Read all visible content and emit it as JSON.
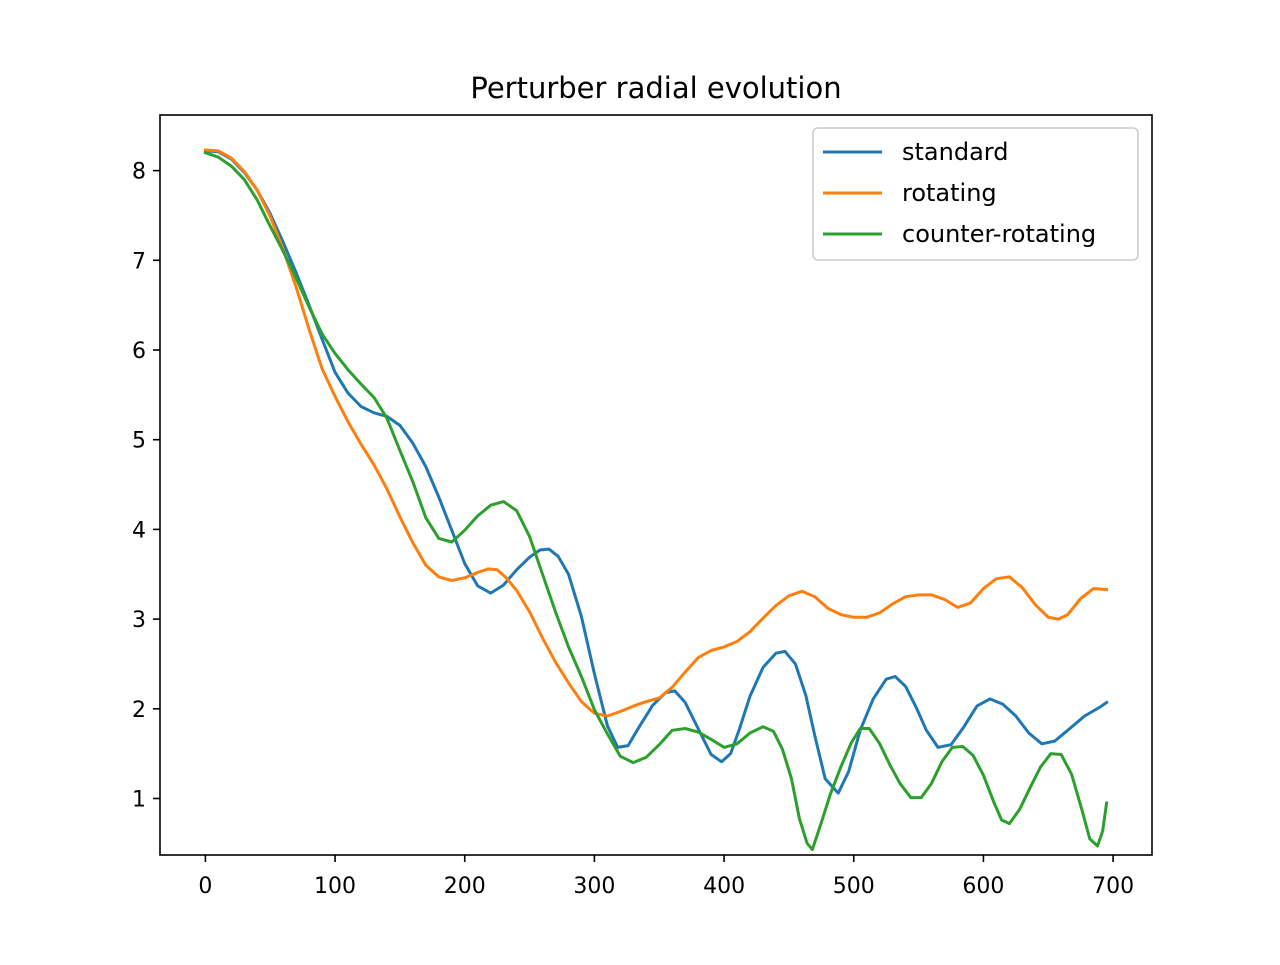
{
  "chart_data": {
    "type": "line",
    "title": "Perturber radial evolution",
    "xlabel": "",
    "ylabel": "",
    "xlim": [
      -35,
      730
    ],
    "ylim": [
      0.37,
      8.62
    ],
    "xticks": [
      0,
      100,
      200,
      300,
      400,
      500,
      600,
      700
    ],
    "yticks": [
      1,
      2,
      3,
      4,
      5,
      6,
      7,
      8
    ],
    "xtick_labels": [
      "0",
      "100",
      "200",
      "300",
      "400",
      "500",
      "600",
      "700"
    ],
    "ytick_labels": [
      "1",
      "2",
      "3",
      "4",
      "5",
      "6",
      "7",
      "8"
    ],
    "grid": false,
    "legend_position": "upper right",
    "series": [
      {
        "name": "standard",
        "color": "#1f77b4",
        "points": [
          [
            0,
            8.22
          ],
          [
            10,
            8.21
          ],
          [
            20,
            8.13
          ],
          [
            30,
            7.98
          ],
          [
            40,
            7.78
          ],
          [
            50,
            7.52
          ],
          [
            60,
            7.2
          ],
          [
            70,
            6.86
          ],
          [
            80,
            6.5
          ],
          [
            90,
            6.12
          ],
          [
            100,
            5.75
          ],
          [
            110,
            5.52
          ],
          [
            120,
            5.37
          ],
          [
            130,
            5.3
          ],
          [
            140,
            5.26
          ],
          [
            150,
            5.16
          ],
          [
            160,
            4.96
          ],
          [
            170,
            4.7
          ],
          [
            180,
            4.36
          ],
          [
            190,
            3.99
          ],
          [
            200,
            3.62
          ],
          [
            210,
            3.37
          ],
          [
            220,
            3.29
          ],
          [
            230,
            3.38
          ],
          [
            240,
            3.55
          ],
          [
            250,
            3.69
          ],
          [
            258,
            3.77
          ],
          [
            265,
            3.78
          ],
          [
            272,
            3.7
          ],
          [
            280,
            3.5
          ],
          [
            290,
            3.03
          ],
          [
            300,
            2.39
          ],
          [
            310,
            1.81
          ],
          [
            318,
            1.57
          ],
          [
            326,
            1.59
          ],
          [
            335,
            1.81
          ],
          [
            345,
            2.04
          ],
          [
            355,
            2.18
          ],
          [
            362,
            2.2
          ],
          [
            370,
            2.07
          ],
          [
            380,
            1.78
          ],
          [
            390,
            1.49
          ],
          [
            398,
            1.41
          ],
          [
            405,
            1.5
          ],
          [
            412,
            1.78
          ],
          [
            420,
            2.14
          ],
          [
            430,
            2.46
          ],
          [
            440,
            2.62
          ],
          [
            447,
            2.64
          ],
          [
            455,
            2.5
          ],
          [
            463,
            2.15
          ],
          [
            470,
            1.7
          ],
          [
            478,
            1.22
          ],
          [
            488,
            1.06
          ],
          [
            496,
            1.3
          ],
          [
            505,
            1.76
          ],
          [
            515,
            2.11
          ],
          [
            525,
            2.33
          ],
          [
            532,
            2.36
          ],
          [
            540,
            2.25
          ],
          [
            548,
            2.02
          ],
          [
            556,
            1.76
          ],
          [
            565,
            1.57
          ],
          [
            575,
            1.6
          ],
          [
            585,
            1.8
          ],
          [
            595,
            2.03
          ],
          [
            605,
            2.11
          ],
          [
            615,
            2.05
          ],
          [
            625,
            1.92
          ],
          [
            635,
            1.73
          ],
          [
            645,
            1.61
          ],
          [
            655,
            1.64
          ],
          [
            665,
            1.76
          ],
          [
            678,
            1.92
          ],
          [
            690,
            2.02
          ],
          [
            695,
            2.07
          ]
        ]
      },
      {
        "name": "rotating",
        "color": "#ff7f0e",
        "points": [
          [
            0,
            8.23
          ],
          [
            10,
            8.22
          ],
          [
            20,
            8.14
          ],
          [
            30,
            7.99
          ],
          [
            40,
            7.78
          ],
          [
            50,
            7.49
          ],
          [
            60,
            7.12
          ],
          [
            70,
            6.7
          ],
          [
            80,
            6.23
          ],
          [
            90,
            5.79
          ],
          [
            100,
            5.48
          ],
          [
            110,
            5.2
          ],
          [
            120,
            4.95
          ],
          [
            130,
            4.72
          ],
          [
            140,
            4.45
          ],
          [
            150,
            4.14
          ],
          [
            160,
            3.85
          ],
          [
            170,
            3.6
          ],
          [
            180,
            3.47
          ],
          [
            190,
            3.43
          ],
          [
            200,
            3.46
          ],
          [
            210,
            3.52
          ],
          [
            218,
            3.56
          ],
          [
            225,
            3.55
          ],
          [
            232,
            3.46
          ],
          [
            240,
            3.32
          ],
          [
            250,
            3.08
          ],
          [
            260,
            2.79
          ],
          [
            270,
            2.52
          ],
          [
            280,
            2.29
          ],
          [
            290,
            2.08
          ],
          [
            300,
            1.95
          ],
          [
            310,
            1.92
          ],
          [
            320,
            1.97
          ],
          [
            330,
            2.03
          ],
          [
            340,
            2.08
          ],
          [
            350,
            2.12
          ],
          [
            360,
            2.24
          ],
          [
            370,
            2.41
          ],
          [
            380,
            2.57
          ],
          [
            390,
            2.65
          ],
          [
            400,
            2.69
          ],
          [
            410,
            2.75
          ],
          [
            420,
            2.86
          ],
          [
            430,
            3.01
          ],
          [
            440,
            3.15
          ],
          [
            450,
            3.26
          ],
          [
            460,
            3.31
          ],
          [
            470,
            3.25
          ],
          [
            480,
            3.12
          ],
          [
            490,
            3.05
          ],
          [
            500,
            3.02
          ],
          [
            510,
            3.02
          ],
          [
            520,
            3.07
          ],
          [
            530,
            3.17
          ],
          [
            540,
            3.25
          ],
          [
            550,
            3.27
          ],
          [
            560,
            3.27
          ],
          [
            570,
            3.22
          ],
          [
            580,
            3.13
          ],
          [
            590,
            3.18
          ],
          [
            600,
            3.34
          ],
          [
            610,
            3.45
          ],
          [
            620,
            3.47
          ],
          [
            630,
            3.35
          ],
          [
            640,
            3.16
          ],
          [
            650,
            3.02
          ],
          [
            658,
            3.0
          ],
          [
            665,
            3.05
          ],
          [
            675,
            3.23
          ],
          [
            685,
            3.34
          ],
          [
            695,
            3.33
          ]
        ]
      },
      {
        "name": "counter-rotating",
        "color": "#2ca02c",
        "points": [
          [
            0,
            8.2
          ],
          [
            10,
            8.15
          ],
          [
            20,
            8.05
          ],
          [
            30,
            7.9
          ],
          [
            40,
            7.67
          ],
          [
            50,
            7.38
          ],
          [
            60,
            7.1
          ],
          [
            70,
            6.8
          ],
          [
            80,
            6.48
          ],
          [
            90,
            6.18
          ],
          [
            100,
            5.96
          ],
          [
            110,
            5.78
          ],
          [
            120,
            5.62
          ],
          [
            130,
            5.47
          ],
          [
            140,
            5.24
          ],
          [
            150,
            4.88
          ],
          [
            160,
            4.53
          ],
          [
            170,
            4.13
          ],
          [
            180,
            3.9
          ],
          [
            190,
            3.86
          ],
          [
            200,
            3.99
          ],
          [
            210,
            4.15
          ],
          [
            220,
            4.27
          ],
          [
            230,
            4.31
          ],
          [
            240,
            4.21
          ],
          [
            250,
            3.92
          ],
          [
            260,
            3.5
          ],
          [
            270,
            3.08
          ],
          [
            280,
            2.69
          ],
          [
            290,
            2.36
          ],
          [
            300,
            1.99
          ],
          [
            310,
            1.72
          ],
          [
            320,
            1.47
          ],
          [
            330,
            1.4
          ],
          [
            340,
            1.46
          ],
          [
            350,
            1.6
          ],
          [
            360,
            1.76
          ],
          [
            370,
            1.78
          ],
          [
            380,
            1.74
          ],
          [
            390,
            1.66
          ],
          [
            400,
            1.57
          ],
          [
            410,
            1.61
          ],
          [
            420,
            1.73
          ],
          [
            430,
            1.8
          ],
          [
            438,
            1.75
          ],
          [
            445,
            1.55
          ],
          [
            452,
            1.22
          ],
          [
            458,
            0.78
          ],
          [
            464,
            0.5
          ],
          [
            468,
            0.43
          ],
          [
            475,
            0.73
          ],
          [
            482,
            1.05
          ],
          [
            490,
            1.35
          ],
          [
            498,
            1.62
          ],
          [
            505,
            1.78
          ],
          [
            512,
            1.78
          ],
          [
            520,
            1.61
          ],
          [
            528,
            1.37
          ],
          [
            536,
            1.16
          ],
          [
            544,
            1.01
          ],
          [
            552,
            1.01
          ],
          [
            560,
            1.17
          ],
          [
            568,
            1.41
          ],
          [
            576,
            1.57
          ],
          [
            584,
            1.58
          ],
          [
            592,
            1.48
          ],
          [
            600,
            1.26
          ],
          [
            608,
            0.96
          ],
          [
            614,
            0.76
          ],
          [
            620,
            0.72
          ],
          [
            628,
            0.88
          ],
          [
            636,
            1.12
          ],
          [
            644,
            1.35
          ],
          [
            652,
            1.5
          ],
          [
            660,
            1.49
          ],
          [
            668,
            1.27
          ],
          [
            676,
            0.87
          ],
          [
            682,
            0.55
          ],
          [
            688,
            0.47
          ],
          [
            692,
            0.64
          ],
          [
            695,
            0.95
          ]
        ]
      }
    ]
  }
}
